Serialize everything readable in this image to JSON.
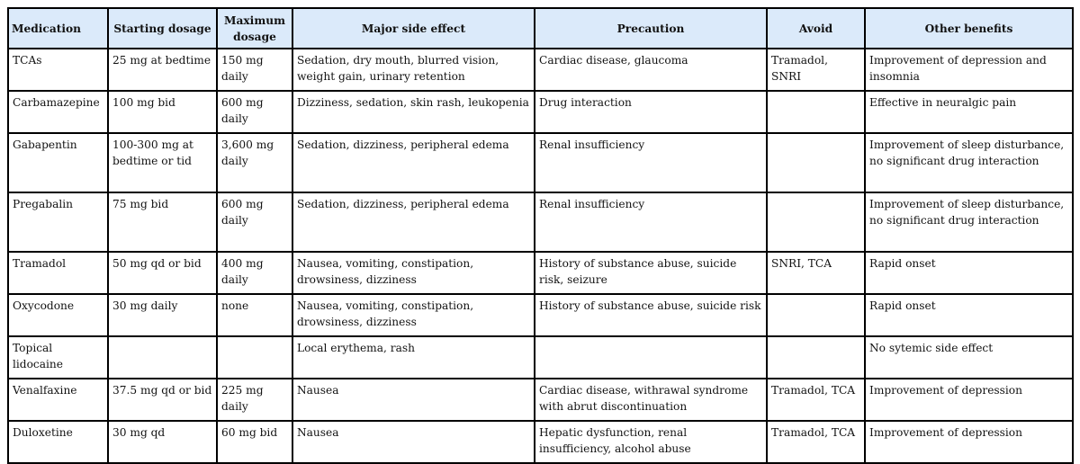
{
  "table": {
    "headers": [
      "Medication",
      "Starting dosage",
      "Maximum dosage",
      "Major side effect",
      "Precaution",
      "Avoid",
      "Other benefits"
    ],
    "rows": [
      [
        "TCAs",
        "25 mg at bedtime",
        "150 mg daily",
        "Sedation, dry mouth, blurred vision, weight gain, urinary retention",
        "Cardiac disease, glaucoma",
        "Tramadol, SNRI",
        "Improvement of depression and insomnia"
      ],
      [
        "Carbamazepine",
        "100 mg bid",
        "600 mg daily",
        "Dizziness, sedation, skin rash, leukopenia",
        "Drug interaction",
        "",
        "Effective in neuralgic pain"
      ],
      [
        "Gabapentin",
        "100-300 mg at bedtime or tid",
        "3,600 mg daily",
        "Sedation, dizziness,  peripheral edema",
        "Renal insufficiency",
        "",
        "Improvement of sleep disturbance, no significant drug interaction"
      ],
      [
        "Pregabalin",
        "75 mg bid",
        "600 mg daily",
        "Sedation, dizziness,  peripheral edema",
        "Renal insufficiency",
        "",
        "Improvement of sleep disturbance,  no significant drug interaction"
      ],
      [
        "Tramadol",
        "50 mg qd or bid",
        "400 mg daily",
        "Nausea, vomiting,  constipation, drowsiness, dizziness",
        "History of substance abuse, suicide risk, seizure",
        "SNRI, TCA",
        "Rapid onset"
      ],
      [
        "Oxycodone",
        "30 mg daily",
        "none",
        "Nausea, vomiting,  constipation, drowsiness, dizziness",
        "History of substance abuse, suicide risk",
        "",
        "Rapid onset"
      ],
      [
        "Topical lidocaine",
        "",
        "",
        "Local erythema, rash",
        "",
        "",
        "No sytemic side effect"
      ],
      [
        "Venalfaxine",
        "37.5 mg qd or bid",
        "225 mg daily",
        "Nausea",
        "Cardiac disease, withrawal syndrome with abrut discontinuation",
        "Tramadol,  TCA",
        "Improvement of depression"
      ],
      [
        "Duloxetine",
        "30 mg qd",
        "60 mg bid",
        "Nausea",
        "Hepatic dysfunction, renal insufficiency, alcohol abuse",
        "Tramadol,  TCA",
        "Improvement of depression"
      ]
    ]
  },
  "colors": {
    "header_bg": "#dbeafa",
    "border": "#000000"
  }
}
